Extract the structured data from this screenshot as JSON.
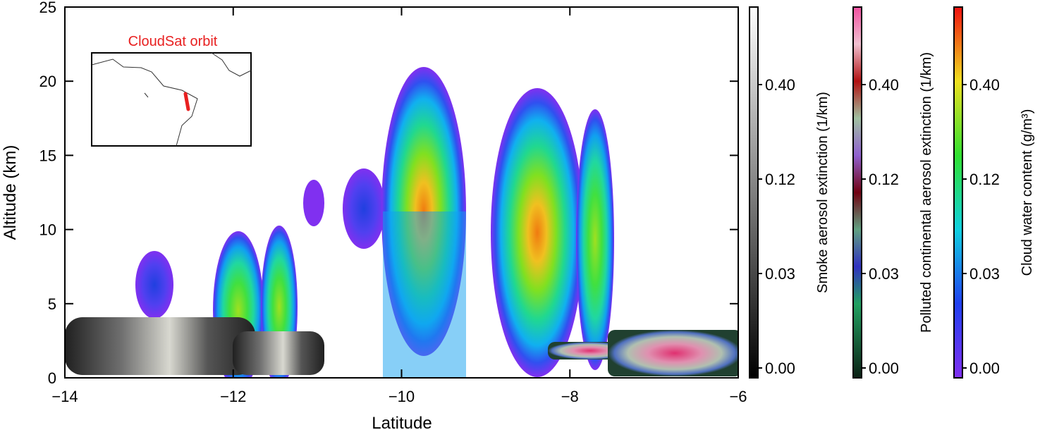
{
  "chart_data": {
    "type": "contour",
    "xlabel": "Latitude",
    "ylabel": "Altitude (km)",
    "xlim": [
      -14,
      -6
    ],
    "xticks": [
      {
        "value": -14,
        "label": "−14"
      },
      {
        "value": -12,
        "label": "−12"
      },
      {
        "value": -10,
        "label": "−10"
      },
      {
        "value": -8,
        "label": "−8"
      },
      {
        "value": -6,
        "label": "−6"
      }
    ],
    "ylim": [
      0,
      25
    ],
    "yticks": [
      0,
      5,
      10,
      15,
      20,
      25
    ],
    "inset_label": "CloudSat orbit",
    "colorbars": [
      {
        "label": "Smoke aerosol extinction (1/km)",
        "ticks": [
          {
            "value": 0,
            "label": "0.00"
          },
          {
            "value": 0.03,
            "label": "0.03"
          },
          {
            "value": 0.12,
            "label": "0.12"
          },
          {
            "value": 0.4,
            "label": "0.40"
          }
        ]
      },
      {
        "label": "Polluted continental aerosol extinction (1/km)",
        "ticks": [
          {
            "value": 0,
            "label": "0.00"
          },
          {
            "value": 0.03,
            "label": "0.03"
          },
          {
            "value": 0.12,
            "label": "0.12"
          },
          {
            "value": 0.4,
            "label": "0.40"
          }
        ]
      },
      {
        "label": "Cloud water content (g/m³)",
        "ticks": [
          {
            "value": 0,
            "label": "0.00"
          },
          {
            "value": 0.03,
            "label": "0.03"
          },
          {
            "value": 0.12,
            "label": "0.12"
          },
          {
            "value": 0.4,
            "label": "0.40"
          }
        ]
      }
    ]
  }
}
